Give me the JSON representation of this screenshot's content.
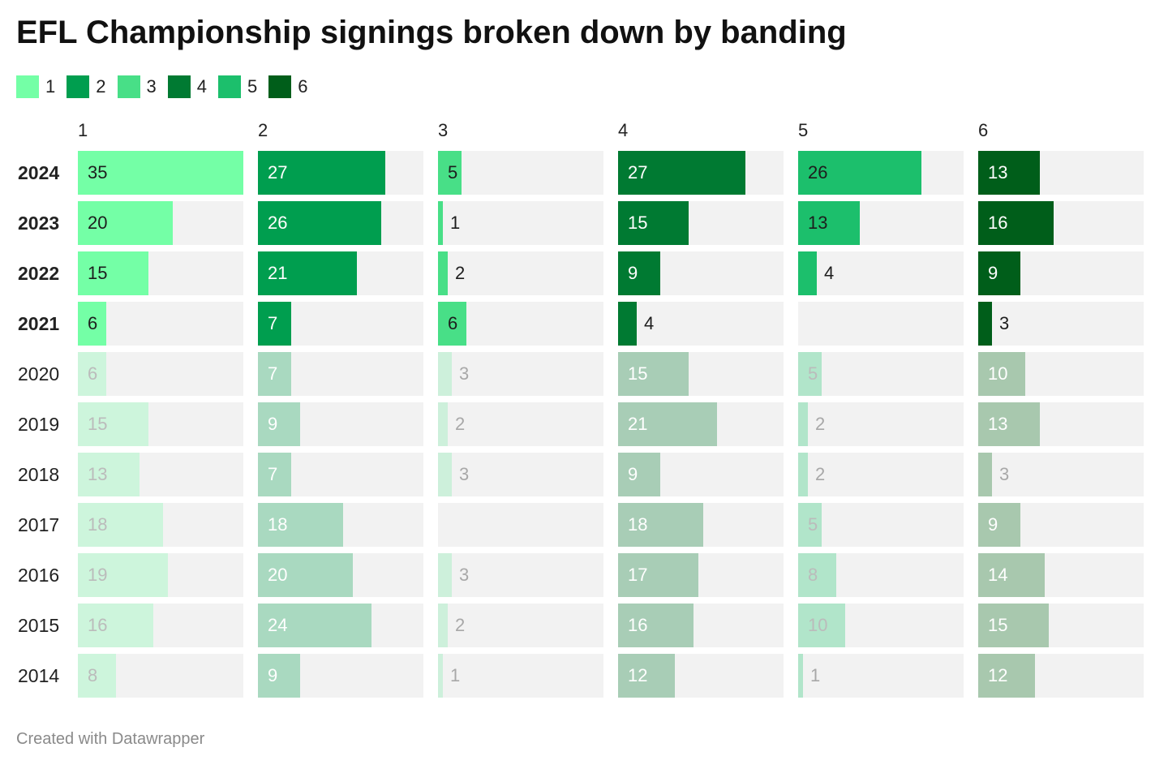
{
  "title": "EFL Championship signings broken down by banding",
  "footer": "Created with Datawrapper",
  "chart_data": {
    "type": "bar",
    "layout": "small-multiples",
    "title": "EFL Championship signings broken down by banding",
    "categories": [
      "2024",
      "2023",
      "2022",
      "2021",
      "2020",
      "2019",
      "2018",
      "2017",
      "2016",
      "2015",
      "2014"
    ],
    "highlighted_categories": [
      "2024",
      "2023",
      "2022",
      "2021"
    ],
    "xlim": [
      0,
      35
    ],
    "series": [
      {
        "name": "1",
        "color": "#74ffa6",
        "muted_color": "#cdf5dc",
        "values": [
          35,
          20,
          15,
          6,
          6,
          15,
          13,
          18,
          19,
          16,
          8
        ]
      },
      {
        "name": "2",
        "color": "#009e4f",
        "muted_color": "#a9d9c0",
        "values": [
          27,
          26,
          21,
          7,
          7,
          9,
          7,
          18,
          20,
          24,
          9
        ]
      },
      {
        "name": "3",
        "color": "#48df87",
        "muted_color": "#cdf0db",
        "values": [
          5,
          1,
          2,
          6,
          3,
          2,
          3,
          null,
          3,
          2,
          1
        ]
      },
      {
        "name": "4",
        "color": "#007a32",
        "muted_color": "#a8cdb6",
        "values": [
          27,
          15,
          9,
          4,
          15,
          21,
          9,
          18,
          17,
          16,
          12
        ]
      },
      {
        "name": "5",
        "color": "#1cbf6c",
        "muted_color": "#b1e5ca",
        "values": [
          26,
          13,
          4,
          null,
          5,
          2,
          2,
          5,
          8,
          10,
          1
        ]
      },
      {
        "name": "6",
        "color": "#005e1a",
        "muted_color": "#a8c8ae",
        "values": [
          13,
          16,
          9,
          3,
          10,
          13,
          3,
          9,
          14,
          15,
          12
        ]
      }
    ],
    "legend": "top-left",
    "grid": false
  }
}
